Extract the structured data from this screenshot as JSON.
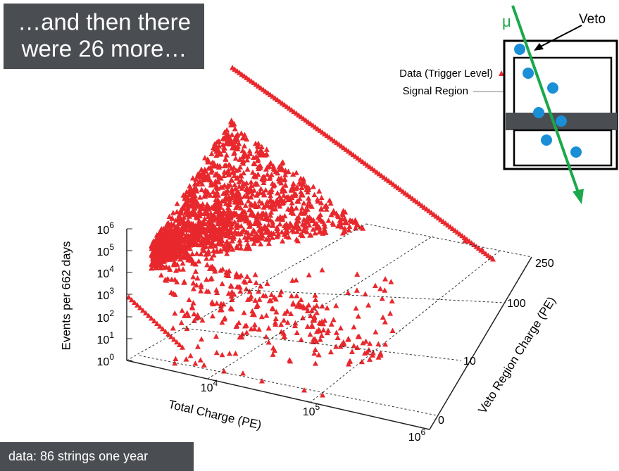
{
  "slide": {
    "title_lines": [
      "…and then there",
      "were 26 more…"
    ],
    "footer": "data: 86 strings one year",
    "plot": {
      "z_label": "Events per 662 days",
      "x_label": "Total Charge (PE)",
      "y_label": "Veto Region Charge (PE)",
      "z_ticks": [
        {
          "base": "10",
          "exp": "6"
        },
        {
          "base": "10",
          "exp": "5"
        },
        {
          "base": "10",
          "exp": "4"
        },
        {
          "base": "10",
          "exp": "3"
        },
        {
          "base": "10",
          "exp": "2"
        },
        {
          "base": "10",
          "exp": "1"
        },
        {
          "base": "10",
          "exp": "0"
        }
      ],
      "x_ticks": [
        {
          "base": "10",
          "exp": "4"
        },
        {
          "base": "10",
          "exp": "5"
        },
        {
          "base": "10",
          "exp": "6"
        }
      ],
      "y_ticks": [
        "0",
        "10",
        "100",
        "250"
      ],
      "legend": [
        "Data (Trigger Level)",
        "Signal Region"
      ]
    },
    "diagram": {
      "veto": "Veto",
      "muon": "μ"
    }
  }
}
